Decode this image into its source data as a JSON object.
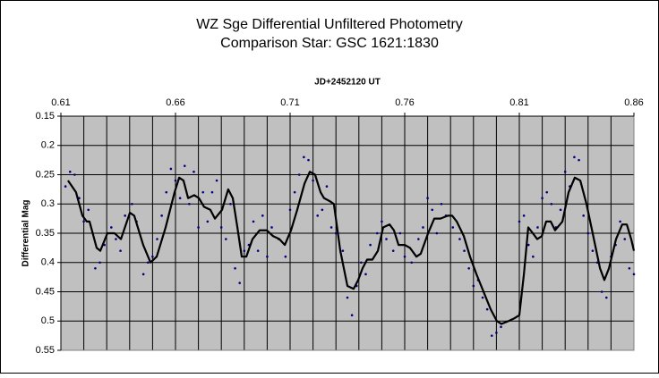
{
  "chart_data": {
    "type": "scatter-line",
    "title": "WZ Sge Differential Unfiltered Photometry",
    "subtitle": "Comparison Star: GSC 1621:1830",
    "xlabel": "JD+2452120  UT",
    "ylabel": "Differential Mag",
    "xlim": [
      0.61,
      0.86
    ],
    "xticks": [
      0.61,
      0.66,
      0.71,
      0.76,
      0.81,
      0.86
    ],
    "xminorticks": [
      0.61,
      0.62,
      0.63,
      0.64,
      0.65,
      0.66,
      0.67,
      0.68,
      0.69,
      0.7,
      0.71,
      0.72,
      0.73,
      0.74,
      0.75,
      0.76,
      0.77,
      0.78,
      0.79,
      0.8,
      0.81,
      0.82,
      0.83,
      0.84,
      0.85,
      0.86
    ],
    "xaxis_position": "top",
    "ylim": [
      0.15,
      0.55
    ],
    "yticks": [
      0.15,
      0.2,
      0.25,
      0.3,
      0.35,
      0.4,
      0.45,
      0.5,
      0.55
    ],
    "y_inverted": true,
    "grid": true,
    "plot_background": "#c0c0c0",
    "series": [
      {
        "kind": "points",
        "color": "#000080",
        "x": [
          0.612,
          0.614,
          0.616,
          0.618,
          0.62,
          0.622,
          0.625,
          0.627,
          0.629,
          0.632,
          0.634,
          0.636,
          0.638,
          0.641,
          0.643,
          0.646,
          0.648,
          0.65,
          0.652,
          0.654,
          0.656,
          0.658,
          0.66,
          0.662,
          0.664,
          0.666,
          0.668,
          0.67,
          0.672,
          0.674,
          0.676,
          0.678,
          0.68,
          0.682,
          0.684,
          0.686,
          0.688,
          0.69,
          0.692,
          0.694,
          0.696,
          0.698,
          0.7,
          0.702,
          0.705,
          0.708,
          0.71,
          0.712,
          0.714,
          0.716,
          0.718,
          0.72,
          0.722,
          0.724,
          0.726,
          0.728,
          0.73,
          0.733,
          0.735,
          0.737,
          0.739,
          0.741,
          0.743,
          0.745,
          0.748,
          0.75,
          0.752,
          0.755,
          0.758,
          0.76,
          0.763,
          0.766,
          0.768,
          0.77,
          0.772,
          0.774,
          0.776,
          0.778,
          0.781,
          0.784,
          0.786,
          0.788,
          0.79,
          0.792,
          0.794,
          0.796,
          0.798,
          0.8,
          0.802,
          0.81,
          0.812,
          0.814,
          0.816,
          0.818,
          0.82,
          0.822,
          0.824,
          0.826,
          0.828,
          0.83,
          0.832,
          0.834,
          0.836,
          0.838,
          0.84,
          0.842,
          0.844,
          0.846,
          0.848,
          0.85,
          0.852,
          0.854,
          0.856,
          0.858,
          0.86
        ],
        "values": [
          0.27,
          0.245,
          0.25,
          0.29,
          0.33,
          0.31,
          0.41,
          0.4,
          0.37,
          0.34,
          0.36,
          0.38,
          0.32,
          0.3,
          0.33,
          0.42,
          0.4,
          0.39,
          0.36,
          0.32,
          0.28,
          0.24,
          0.26,
          0.29,
          0.235,
          0.3,
          0.245,
          0.34,
          0.28,
          0.33,
          0.28,
          0.26,
          0.34,
          0.36,
          0.3,
          0.41,
          0.435,
          0.38,
          0.37,
          0.33,
          0.38,
          0.32,
          0.39,
          0.34,
          0.36,
          0.39,
          0.31,
          0.28,
          0.25,
          0.22,
          0.225,
          0.26,
          0.32,
          0.31,
          0.27,
          0.34,
          0.35,
          0.38,
          0.46,
          0.49,
          0.44,
          0.4,
          0.42,
          0.37,
          0.35,
          0.33,
          0.36,
          0.38,
          0.35,
          0.39,
          0.4,
          0.36,
          0.34,
          0.29,
          0.31,
          0.35,
          0.3,
          0.32,
          0.34,
          0.36,
          0.38,
          0.41,
          0.44,
          0.43,
          0.46,
          0.48,
          0.525,
          0.52,
          0.51,
          0.33,
          0.32,
          0.37,
          0.39,
          0.34,
          0.29,
          0.28,
          0.3,
          0.34,
          0.31,
          0.245,
          0.27,
          0.22,
          0.225,
          0.32,
          0.35,
          0.38,
          0.4,
          0.45,
          0.46,
          0.39,
          0.37,
          0.33,
          0.36,
          0.41,
          0.42
        ]
      },
      {
        "kind": "line",
        "color": "#000000",
        "x": [
          0.6131,
          0.6166,
          0.6194,
          0.6213,
          0.6225,
          0.6256,
          0.6272,
          0.6303,
          0.6334,
          0.6362,
          0.6401,
          0.642,
          0.6459,
          0.6491,
          0.6518,
          0.6557,
          0.6596,
          0.6616,
          0.6635,
          0.6655,
          0.6682,
          0.6702,
          0.6725,
          0.6752,
          0.6772,
          0.6803,
          0.683,
          0.685,
          0.687,
          0.6889,
          0.6909,
          0.6936,
          0.6967,
          0.6998,
          0.7026,
          0.7053,
          0.7077,
          0.7104,
          0.7131,
          0.7163,
          0.7186,
          0.7209,
          0.7233,
          0.7248,
          0.7272,
          0.7291,
          0.7319,
          0.735,
          0.7377,
          0.7397,
          0.7416,
          0.7436,
          0.7459,
          0.7483,
          0.7506,
          0.7534,
          0.7553,
          0.7573,
          0.76,
          0.7623,
          0.7651,
          0.767,
          0.7702,
          0.7729,
          0.7756,
          0.7788,
          0.7807,
          0.7827,
          0.7858,
          0.7885,
          0.7913,
          0.7944,
          0.7975,
          0.8002,
          0.8022,
          0.8053,
          0.808,
          0.81,
          0.812,
          0.8139,
          0.8159,
          0.8178,
          0.8198,
          0.8217,
          0.8237,
          0.8256,
          0.8288,
          0.8315,
          0.8342,
          0.8366,
          0.8393,
          0.842,
          0.8452,
          0.8471,
          0.8491,
          0.8522,
          0.8549,
          0.8569,
          0.8588,
          0.86
        ],
        "values": [
          0.26,
          0.28,
          0.32,
          0.33,
          0.33,
          0.375,
          0.38,
          0.35,
          0.35,
          0.36,
          0.315,
          0.32,
          0.37,
          0.4,
          0.39,
          0.34,
          0.28,
          0.255,
          0.26,
          0.29,
          0.285,
          0.29,
          0.305,
          0.31,
          0.325,
          0.31,
          0.275,
          0.29,
          0.34,
          0.39,
          0.39,
          0.36,
          0.345,
          0.345,
          0.355,
          0.36,
          0.37,
          0.345,
          0.31,
          0.265,
          0.245,
          0.25,
          0.28,
          0.29,
          0.295,
          0.3,
          0.38,
          0.44,
          0.445,
          0.43,
          0.41,
          0.395,
          0.395,
          0.38,
          0.34,
          0.335,
          0.345,
          0.37,
          0.37,
          0.375,
          0.39,
          0.385,
          0.35,
          0.325,
          0.325,
          0.32,
          0.32,
          0.33,
          0.355,
          0.39,
          0.42,
          0.45,
          0.48,
          0.5,
          0.505,
          0.5,
          0.495,
          0.49,
          0.42,
          0.34,
          0.35,
          0.36,
          0.355,
          0.33,
          0.33,
          0.345,
          0.33,
          0.28,
          0.255,
          0.26,
          0.3,
          0.35,
          0.41,
          0.43,
          0.41,
          0.36,
          0.335,
          0.335,
          0.36,
          0.38
        ]
      }
    ]
  }
}
